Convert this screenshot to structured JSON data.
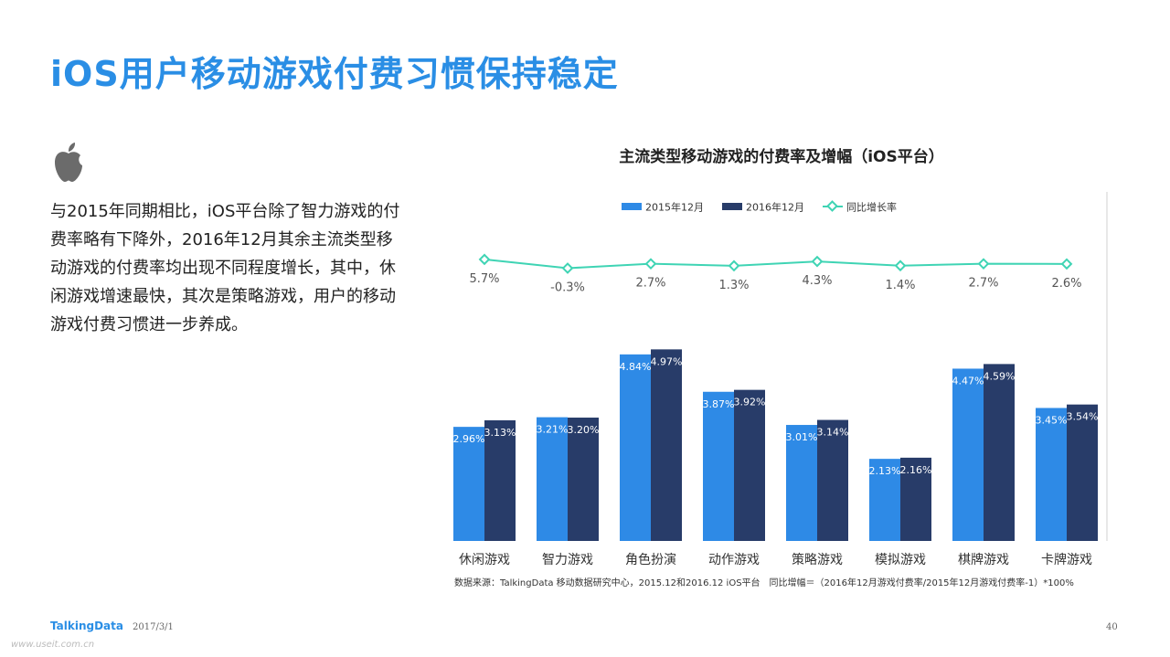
{
  "page": {
    "title": "iOS用户移动游戏付费习惯保持稳定",
    "body_text": "与2015年同期相比，iOS平台除了智力游戏的付费率略有下降外，2016年12月其余主流类型移动游戏的付费率均出现不同程度增长，其中，休闲游戏增速最快，其次是策略游戏，用户的移动游戏付费习惯进一步养成。",
    "source": "数据来源：TalkingData 移动数据研究中心，2015.12和2016.12 iOS平台　同比增幅＝（2016年12月游戏付费率/2015年12月游戏付费率-1）*100%",
    "brand": "TalkingData",
    "date": "2017/3/1",
    "page_number": "40",
    "watermark": "www.useit.com.cn",
    "icon": "apple-icon"
  },
  "colors": {
    "title": "#2a8ee5",
    "series_2015": "#2e8ae6",
    "series_2016": "#283c69",
    "growth_line": "#3fd4b4",
    "icon": "#6b6b6b"
  },
  "chart_data": {
    "type": "bar",
    "title": "主流类型移动游戏的付费率及增幅（iOS平台）",
    "legend_position": "top",
    "categories": [
      "休闲游戏",
      "智力游戏",
      "角色扮演",
      "动作游戏",
      "策略游戏",
      "模拟游戏",
      "棋牌游戏",
      "卡牌游戏"
    ],
    "series": [
      {
        "name": "2015年12月",
        "values": [
          2.96,
          3.21,
          4.84,
          3.87,
          3.01,
          2.13,
          4.47,
          3.45
        ],
        "labels": [
          "2.96%",
          "3.21%",
          "4.84%",
          "3.87%",
          "3.01%",
          "2.13%",
          "4.47%",
          "3.45%"
        ]
      },
      {
        "name": "2016年12月",
        "values": [
          3.13,
          3.2,
          4.97,
          3.92,
          3.14,
          2.16,
          4.59,
          3.54
        ],
        "labels": [
          "3.13%",
          "3.20%",
          "4.97%",
          "3.92%",
          "3.14%",
          "2.16%",
          "4.59%",
          "3.54%"
        ]
      }
    ],
    "line_series": {
      "name": "同比增长率",
      "values": [
        5.7,
        -0.3,
        2.7,
        1.3,
        4.3,
        1.4,
        2.7,
        2.6
      ],
      "labels": [
        "5.7%",
        "-0.3%",
        "2.7%",
        "1.3%",
        "4.3%",
        "1.4%",
        "2.7%",
        "2.6%"
      ]
    },
    "grid": false
  }
}
